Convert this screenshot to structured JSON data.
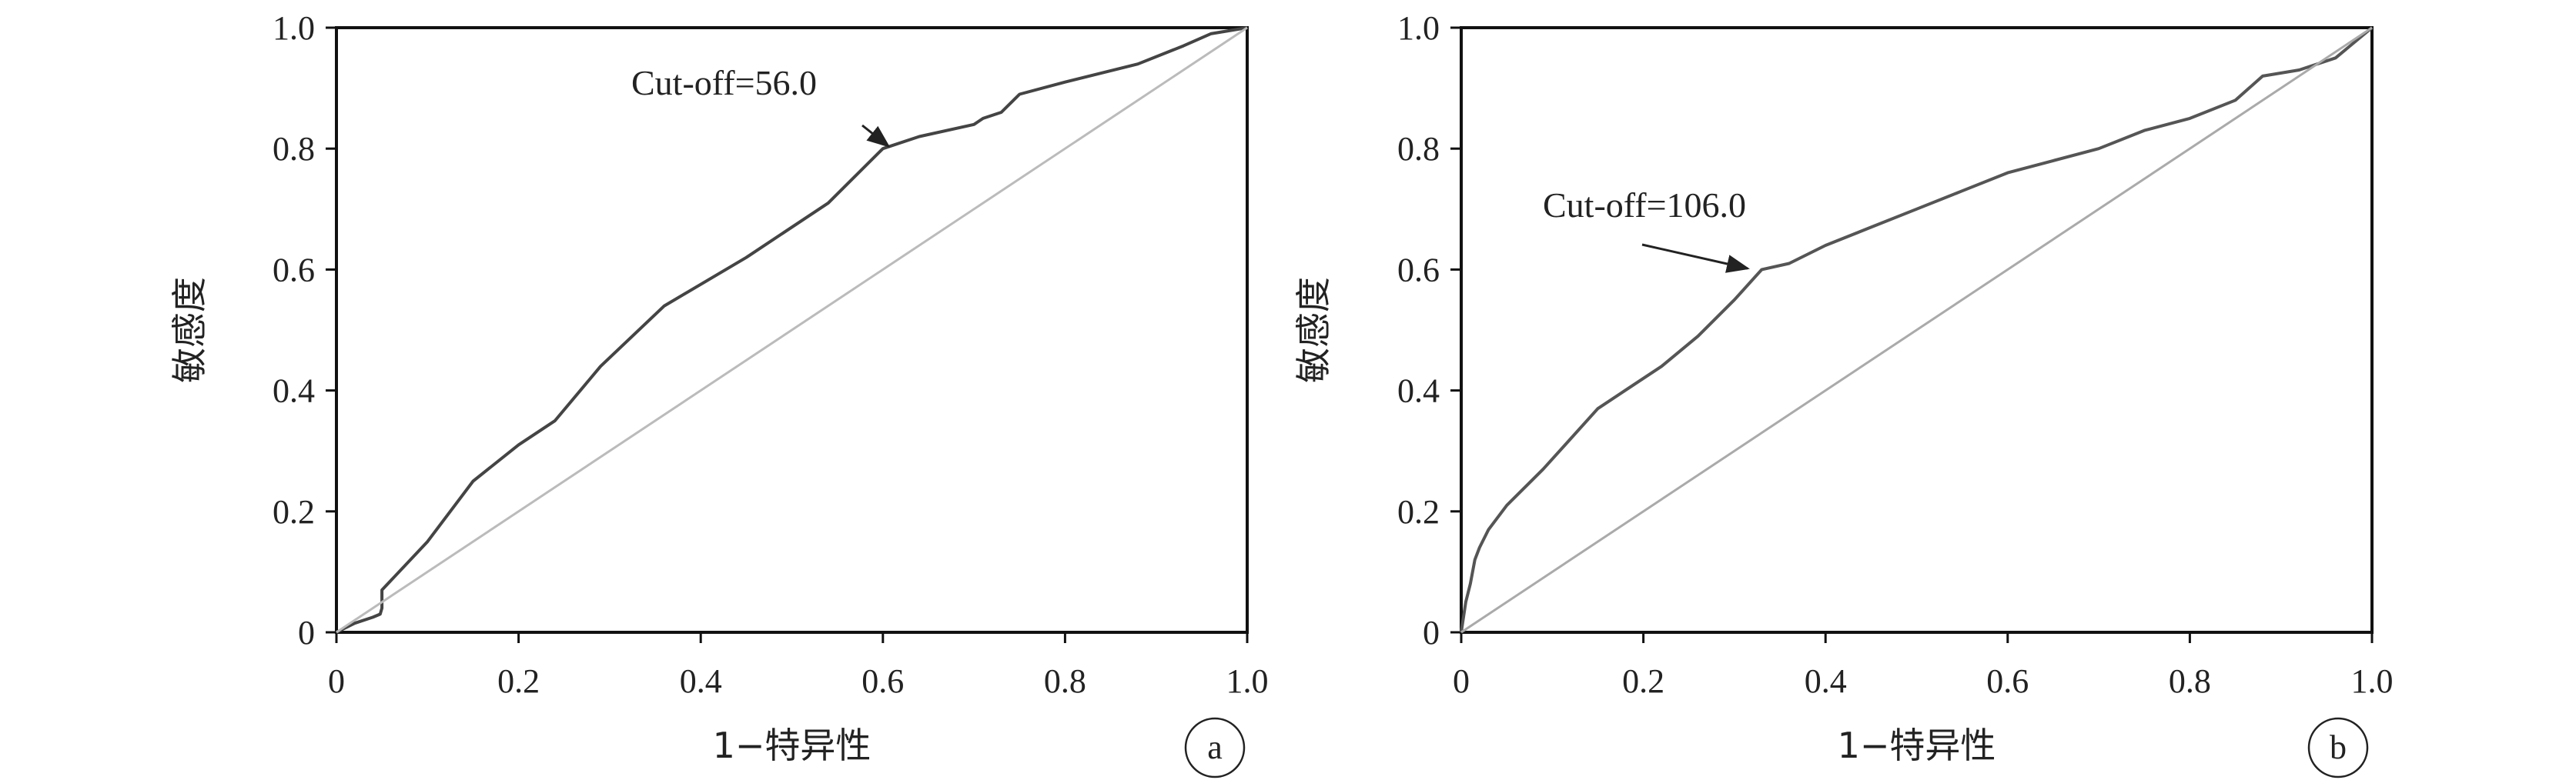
{
  "chart_data": [
    {
      "type": "line",
      "panel_label": "a",
      "xlabel": "1−特异性",
      "ylabel": "敏感度",
      "xlim": [
        0,
        1
      ],
      "ylim": [
        0,
        1
      ],
      "x_ticks": [
        "0",
        "0.2",
        "0.4",
        "0.6",
        "0.8",
        "1.0"
      ],
      "y_ticks": [
        "0",
        "0.2",
        "0.4",
        "0.6",
        "0.8",
        "1.0"
      ],
      "annotation": {
        "text": "Cut-off=56.0",
        "x": 0.6,
        "y": 0.8
      },
      "series": [
        {
          "color": "#444444",
          "x": [
            0,
            0.02,
            0.04,
            0.048,
            0.05,
            0.05,
            0.1,
            0.15,
            0.2,
            0.24,
            0.29,
            0.36,
            0.45,
            0.54,
            0.6,
            0.64,
            0.7,
            0.71,
            0.73,
            0.75,
            0.8,
            0.88,
            0.93,
            0.96,
            1.0
          ],
          "y": [
            0,
            0.015,
            0.025,
            0.03,
            0.04,
            0.07,
            0.15,
            0.25,
            0.31,
            0.35,
            0.44,
            0.54,
            0.62,
            0.71,
            0.8,
            0.82,
            0.84,
            0.85,
            0.86,
            0.89,
            0.91,
            0.94,
            0.97,
            0.99,
            1.0
          ]
        },
        {
          "color": "#bbbbbb",
          "x": [
            0,
            1
          ],
          "y": [
            0,
            1
          ]
        }
      ]
    },
    {
      "type": "line",
      "panel_label": "b",
      "xlabel": "1−特异性",
      "ylabel": "敏感度",
      "xlim": [
        0,
        1
      ],
      "ylim": [
        0,
        1
      ],
      "x_ticks": [
        "0",
        "0.2",
        "0.4",
        "0.6",
        "0.8",
        "1.0"
      ],
      "y_ticks": [
        "0",
        "0.2",
        "0.4",
        "0.6",
        "0.8",
        "1.0"
      ],
      "annotation": {
        "text": "Cut-off=106.0",
        "x": 0.33,
        "y": 0.6
      },
      "series": [
        {
          "color": "#555555",
          "x": [
            0,
            0.005,
            0.01,
            0.015,
            0.02,
            0.03,
            0.05,
            0.07,
            0.09,
            0.12,
            0.15,
            0.18,
            0.22,
            0.26,
            0.3,
            0.33,
            0.36,
            0.4,
            0.45,
            0.5,
            0.55,
            0.6,
            0.65,
            0.7,
            0.75,
            0.8,
            0.85,
            0.88,
            0.92,
            0.96,
            1.0
          ],
          "y": [
            0,
            0.05,
            0.08,
            0.12,
            0.14,
            0.17,
            0.21,
            0.24,
            0.27,
            0.32,
            0.37,
            0.4,
            0.44,
            0.49,
            0.55,
            0.6,
            0.61,
            0.64,
            0.67,
            0.7,
            0.73,
            0.76,
            0.78,
            0.8,
            0.83,
            0.85,
            0.88,
            0.92,
            0.93,
            0.95,
            1.0
          ]
        },
        {
          "color": "#aaaaaa",
          "x": [
            0,
            1
          ],
          "y": [
            0,
            1
          ]
        }
      ]
    }
  ]
}
